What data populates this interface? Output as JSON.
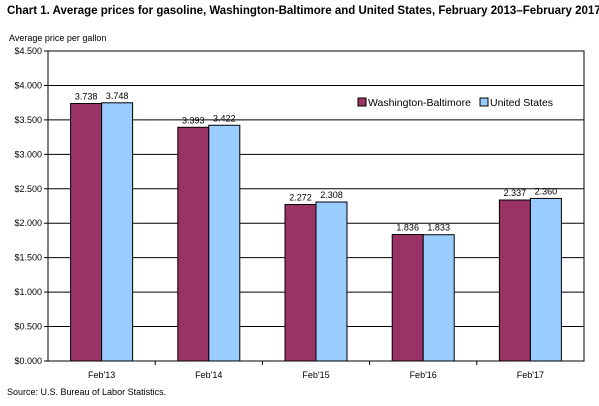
{
  "chart_data": {
    "type": "bar",
    "title": "Chart 1. Average prices for gasoline, Washington-Baltimore and United States, February 2013–February 2017",
    "ylabel": "Average price per gallon",
    "xlabel": "",
    "categories": [
      "Feb'13",
      "Feb'14",
      "Feb'15",
      "Feb'16",
      "Feb'17"
    ],
    "series": [
      {
        "name": "Washington-Baltimore",
        "color": "#993366",
        "values": [
          3.738,
          3.393,
          2.272,
          1.836,
          2.337
        ],
        "labels": [
          "3.738",
          "3.393",
          "2.272",
          "1.836",
          "2.337"
        ]
      },
      {
        "name": "United States",
        "color": "#99ccff",
        "values": [
          3.748,
          3.422,
          2.308,
          1.833,
          2.36
        ],
        "labels": [
          "3.748",
          "3.422",
          "2.308",
          "1.833",
          "2.360"
        ]
      }
    ],
    "ylim": [
      0,
      4.5
    ],
    "yticks": [
      0,
      0.5,
      1,
      1.5,
      2,
      2.5,
      3,
      3.5,
      4,
      4.5
    ],
    "ytick_labels": [
      "$0.000",
      "$0.500",
      "$1.000",
      "$1.500",
      "$2.000",
      "$2.500",
      "$3.000",
      "$3.500",
      "$4.000",
      "$4.500"
    ],
    "grid": true,
    "legend_position": "top-right"
  },
  "source": "Source: U.S. Bureau of Labor Statistics."
}
